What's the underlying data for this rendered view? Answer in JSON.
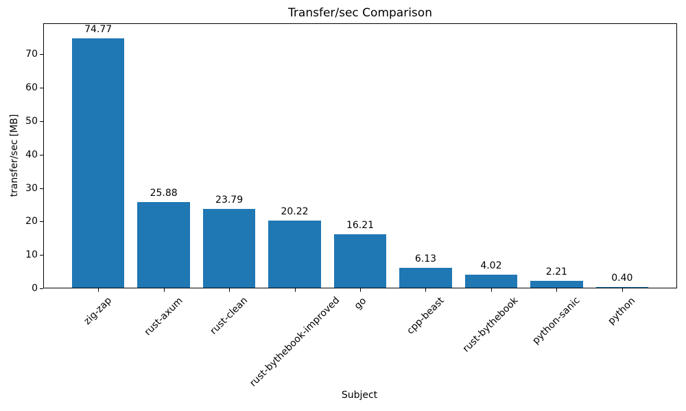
{
  "chart_data": {
    "type": "bar",
    "title": "Transfer/sec Comparison",
    "xlabel": "Subject",
    "ylabel": "transfer/sec [MB]",
    "categories": [
      "zig-zap",
      "rust-axum",
      "rust-clean",
      "rust-bythebook-improved",
      "go",
      "cpp-beast",
      "rust-bythebook",
      "python-sanic",
      "python"
    ],
    "values": [
      74.77,
      25.88,
      23.79,
      20.22,
      16.21,
      6.13,
      4.02,
      2.21,
      0.4
    ],
    "bar_labels": [
      "74.77",
      "25.88",
      "23.79",
      "20.22",
      "16.21",
      "6.13",
      "4.02",
      "2.21",
      "0.40"
    ],
    "yticks": [
      0,
      10,
      20,
      30,
      40,
      50,
      60,
      70
    ],
    "ylim": [
      0,
      79.3
    ],
    "x_tick_rotation_deg": 45,
    "grid": false,
    "legend": null,
    "bar_color": "#1f77b4",
    "axis_color": "#000000",
    "background_color": "#ffffff"
  }
}
